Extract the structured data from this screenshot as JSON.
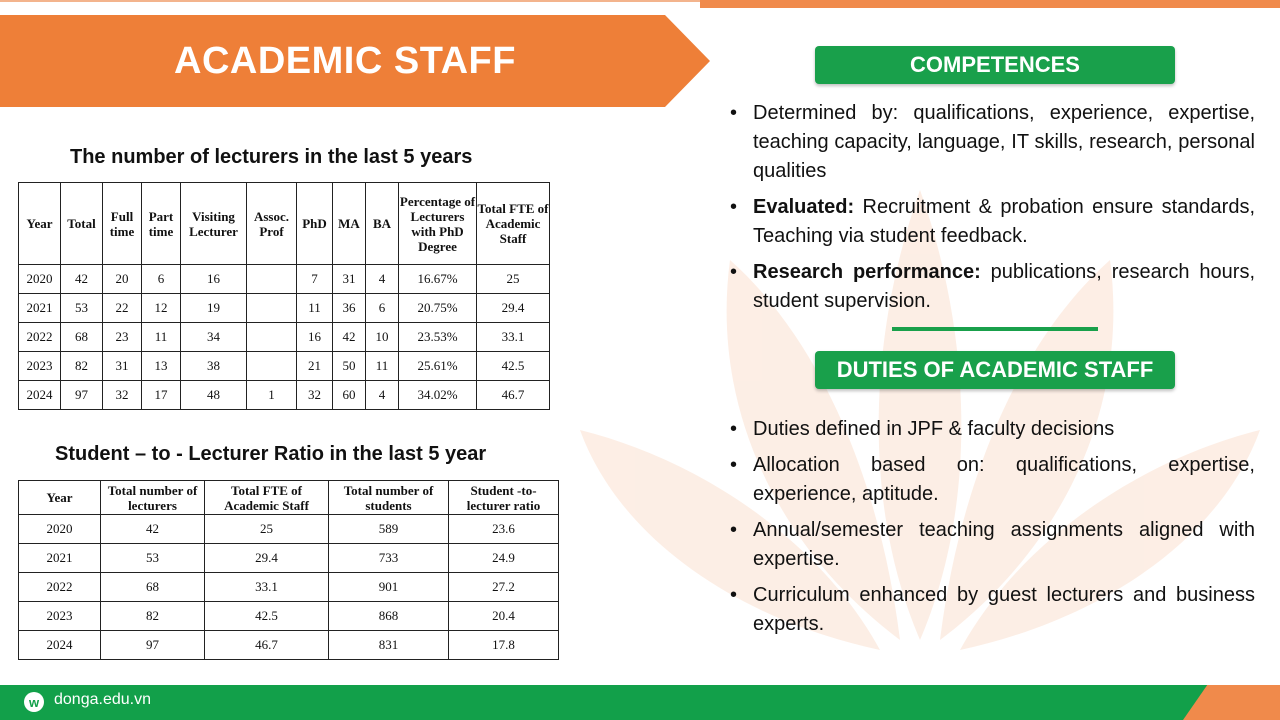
{
  "title": "ACADEMIC STAFF",
  "table1": {
    "caption": "The number of lecturers in the last 5 years",
    "headers": [
      "Year",
      "Total",
      "Full time",
      "Part time",
      "Visiting Lecturer",
      "Assoc. Prof",
      "PhD",
      "MA",
      "BA",
      "Percentage of Lecturers with PhD Degree",
      "Total FTE of Academic Staff"
    ],
    "rows": [
      [
        "2020",
        "42",
        "20",
        "6",
        "16",
        "",
        "7",
        "31",
        "4",
        "16.67%",
        "25"
      ],
      [
        "2021",
        "53",
        "22",
        "12",
        "19",
        "",
        "11",
        "36",
        "6",
        "20.75%",
        "29.4"
      ],
      [
        "2022",
        "68",
        "23",
        "11",
        "34",
        "",
        "16",
        "42",
        "10",
        "23.53%",
        "33.1"
      ],
      [
        "2023",
        "82",
        "31",
        "13",
        "38",
        "",
        "21",
        "50",
        "11",
        "25.61%",
        "42.5"
      ],
      [
        "2024",
        "97",
        "32",
        "17",
        "48",
        "1",
        "32",
        "60",
        "4",
        "34.02%",
        "46.7"
      ]
    ]
  },
  "table2": {
    "caption": "Student – to - Lecturer Ratio in the last 5 year",
    "headers": [
      "Year",
      "Total number of lecturers",
      "Total FTE of Academic Staff",
      "Total number of students",
      "Student -to-lecturer ratio"
    ],
    "rows": [
      [
        "2020",
        "42",
        "25",
        "589",
        "23.6"
      ],
      [
        "2021",
        "53",
        "29.4",
        "733",
        "24.9"
      ],
      [
        "2022",
        "68",
        "33.1",
        "901",
        "27.2"
      ],
      [
        "2023",
        "82",
        "42.5",
        "868",
        "20.4"
      ],
      [
        "2024",
        "97",
        "46.7",
        "831",
        "17.8"
      ]
    ]
  },
  "competences": {
    "heading": "COMPETENCES",
    "items": [
      {
        "bold": "",
        "text": "Determined by: qualifications, experience, expertise, teaching capacity, language, IT skills, research, personal qualities"
      },
      {
        "bold": "Evaluated:",
        "text": " Recruitment & probation ensure standards, Teaching via student feedback."
      },
      {
        "bold": "Research performance:",
        "text": " publications, research hours, student supervision."
      }
    ]
  },
  "duties": {
    "heading": "DUTIES OF ACADEMIC STAFF",
    "items": [
      "Duties defined in JPF & faculty decisions",
      "Allocation based on: qualifications, expertise, experience, aptitude.",
      "Annual/semester teaching assignments aligned with expertise.",
      "Curriculum enhanced by guest lecturers and business experts."
    ]
  },
  "footer": {
    "logo": "w",
    "site": "donga.edu.vn"
  },
  "colors": {
    "orange": "#ee7f38",
    "green": "#19a04b"
  }
}
